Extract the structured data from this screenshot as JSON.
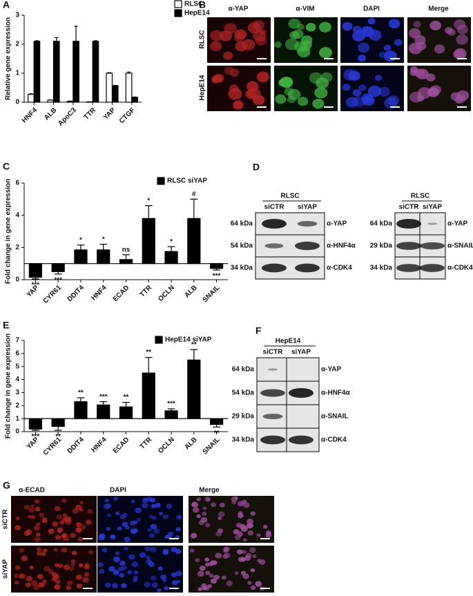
{
  "chart_data": [
    {
      "type": "bar",
      "panel": "A",
      "y_label": "Relative gene expression",
      "categories": [
        "HNF4",
        "ALB",
        "ApoC3",
        "TTR",
        "YAP",
        "CTGF"
      ],
      "series": [
        {
          "name": "RLSC",
          "color": "#ffffff",
          "values": [
            0.27,
            0.07,
            0.03,
            0.01,
            1.0,
            1.0
          ],
          "errors": [
            0.02,
            0.01,
            0.01,
            0.005,
            0.02,
            0.04
          ]
        },
        {
          "name": "HepE14",
          "color": "#000000",
          "values": [
            2.1,
            2.1,
            2.1,
            2.1,
            0.57,
            0.17
          ],
          "errors": [
            0.02,
            0.13,
            0.52,
            0.02,
            0.01,
            0.01
          ]
        }
      ],
      "ylim": [
        0,
        3
      ],
      "yticks": [
        0,
        1,
        2,
        3
      ]
    },
    {
      "type": "bar",
      "panel": "C",
      "y_label": "Fold change in gene expression",
      "categories": [
        "YAP",
        "CYR61",
        "DDIT4",
        "HNF4",
        "ECAD",
        "TTR",
        "OCLN",
        "ALB",
        "SNAIL"
      ],
      "series": [
        {
          "name": "RLSC siYAP",
          "color": "#000000",
          "values": [
            0.15,
            0.5,
            1.85,
            1.85,
            1.25,
            3.8,
            1.75,
            3.8,
            0.7
          ],
          "errors": [
            0.1,
            0.15,
            0.3,
            0.35,
            0.3,
            0.8,
            0.3,
            1.2,
            0.1
          ],
          "annotations": [
            "***",
            "***",
            "*",
            "*",
            "ns",
            "*",
            "*",
            "#",
            "***"
          ]
        }
      ],
      "reference_line": 1,
      "ylim": [
        0,
        6
      ],
      "yticks": [
        0,
        2,
        4,
        6
      ]
    },
    {
      "type": "bar",
      "panel": "E",
      "y_label": "Fold change in gene expression",
      "categories": [
        "YAP",
        "CYR61",
        "DDIT4",
        "HNF4",
        "ECAD",
        "TTR",
        "OCLN",
        "ALB",
        "SNAIL"
      ],
      "series": [
        {
          "name": "HepE14 siYAP",
          "color": "#000000",
          "values": [
            0.2,
            0.4,
            2.3,
            2.05,
            1.9,
            4.5,
            1.6,
            5.5,
            0.55
          ],
          "errors": [
            0.1,
            0.3,
            0.3,
            0.25,
            0.35,
            1.2,
            0.15,
            0.8,
            0.2
          ],
          "annotations": [
            "***",
            "**",
            "**",
            "***",
            "**",
            "**",
            "***",
            "**",
            "**"
          ]
        }
      ],
      "reference_line": 1,
      "ylim": [
        0,
        7
      ],
      "yticks": [
        0,
        1,
        2,
        3,
        4,
        5,
        6,
        7
      ]
    }
  ],
  "panel_b": {
    "label": "B",
    "columns": [
      "α-YAP",
      "α-VIM",
      "DAPI",
      "Merge"
    ],
    "rows": [
      "RLSC",
      "HepE14"
    ]
  },
  "panel_d": {
    "label": "D",
    "blots": [
      {
        "group": "RLSC",
        "lanes": [
          "siCTR",
          "siYAP"
        ],
        "rows": [
          {
            "size": "64 kDa",
            "antibody": "α-YAP"
          },
          {
            "size": "54 kDa",
            "antibody": "α-HNF4α"
          },
          {
            "size": "34 kDa",
            "antibody": "α-CDK4"
          }
        ]
      },
      {
        "group": "RLSC",
        "lanes": [
          "siCTR",
          "siYAP"
        ],
        "rows": [
          {
            "size": "64 kDa",
            "antibody": "α-YAP"
          },
          {
            "size": "29 kDa",
            "antibody": "α-SNAIL"
          },
          {
            "size": "34 kDa",
            "antibody": "α-CDK4"
          }
        ]
      }
    ]
  },
  "panel_f": {
    "label": "F",
    "blots": [
      {
        "group": "HepE14",
        "lanes": [
          "siCTR",
          "siYAP"
        ],
        "rows": [
          {
            "size": "64 kDa",
            "antibody": "α-YAP"
          },
          {
            "size": "54 kDa",
            "antibody": "α-HNF4α"
          },
          {
            "size": "29 kDa",
            "antibody": "α-SNAIL"
          },
          {
            "size": "34 kDa",
            "antibody": "α-CDK4"
          }
        ]
      }
    ]
  },
  "panel_g": {
    "label": "G",
    "columns": [
      "α-ECAD",
      "DAPI",
      "Merge"
    ],
    "rows": [
      "siCTR",
      "siYAP"
    ]
  }
}
